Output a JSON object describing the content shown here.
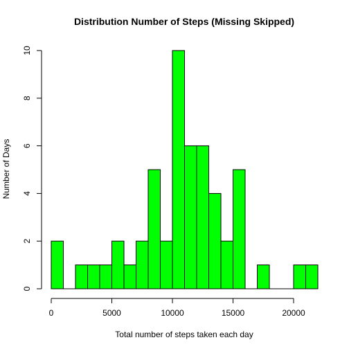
{
  "chart_data": {
    "type": "bar",
    "title": "Distribution Number of Steps (Missing Skipped)",
    "xlabel": "Total number of steps taken each day",
    "ylabel": "Number of Days",
    "bar_color": "#00ff00",
    "bin_width": 1000,
    "bins_start": [
      0,
      1000,
      2000,
      3000,
      4000,
      5000,
      6000,
      7000,
      8000,
      9000,
      10000,
      11000,
      12000,
      13000,
      14000,
      15000,
      16000,
      17000,
      18000,
      19000,
      20000,
      21000
    ],
    "values": [
      2,
      0,
      1,
      1,
      1,
      2,
      1,
      2,
      5,
      2,
      10,
      6,
      6,
      4,
      2,
      5,
      0,
      1,
      0,
      0,
      1,
      1
    ],
    "xlim": [
      0,
      22000
    ],
    "ylim": [
      0,
      10
    ],
    "x_ticks": [
      0,
      5000,
      10000,
      15000,
      20000
    ],
    "x_tick_labels": [
      "0",
      "5000",
      "10000",
      "15000",
      "20000"
    ],
    "y_ticks": [
      0,
      2,
      4,
      6,
      8,
      10
    ],
    "y_tick_labels": [
      "0",
      "2",
      "4",
      "6",
      "8",
      "10"
    ],
    "grid": false,
    "legend": "none"
  }
}
